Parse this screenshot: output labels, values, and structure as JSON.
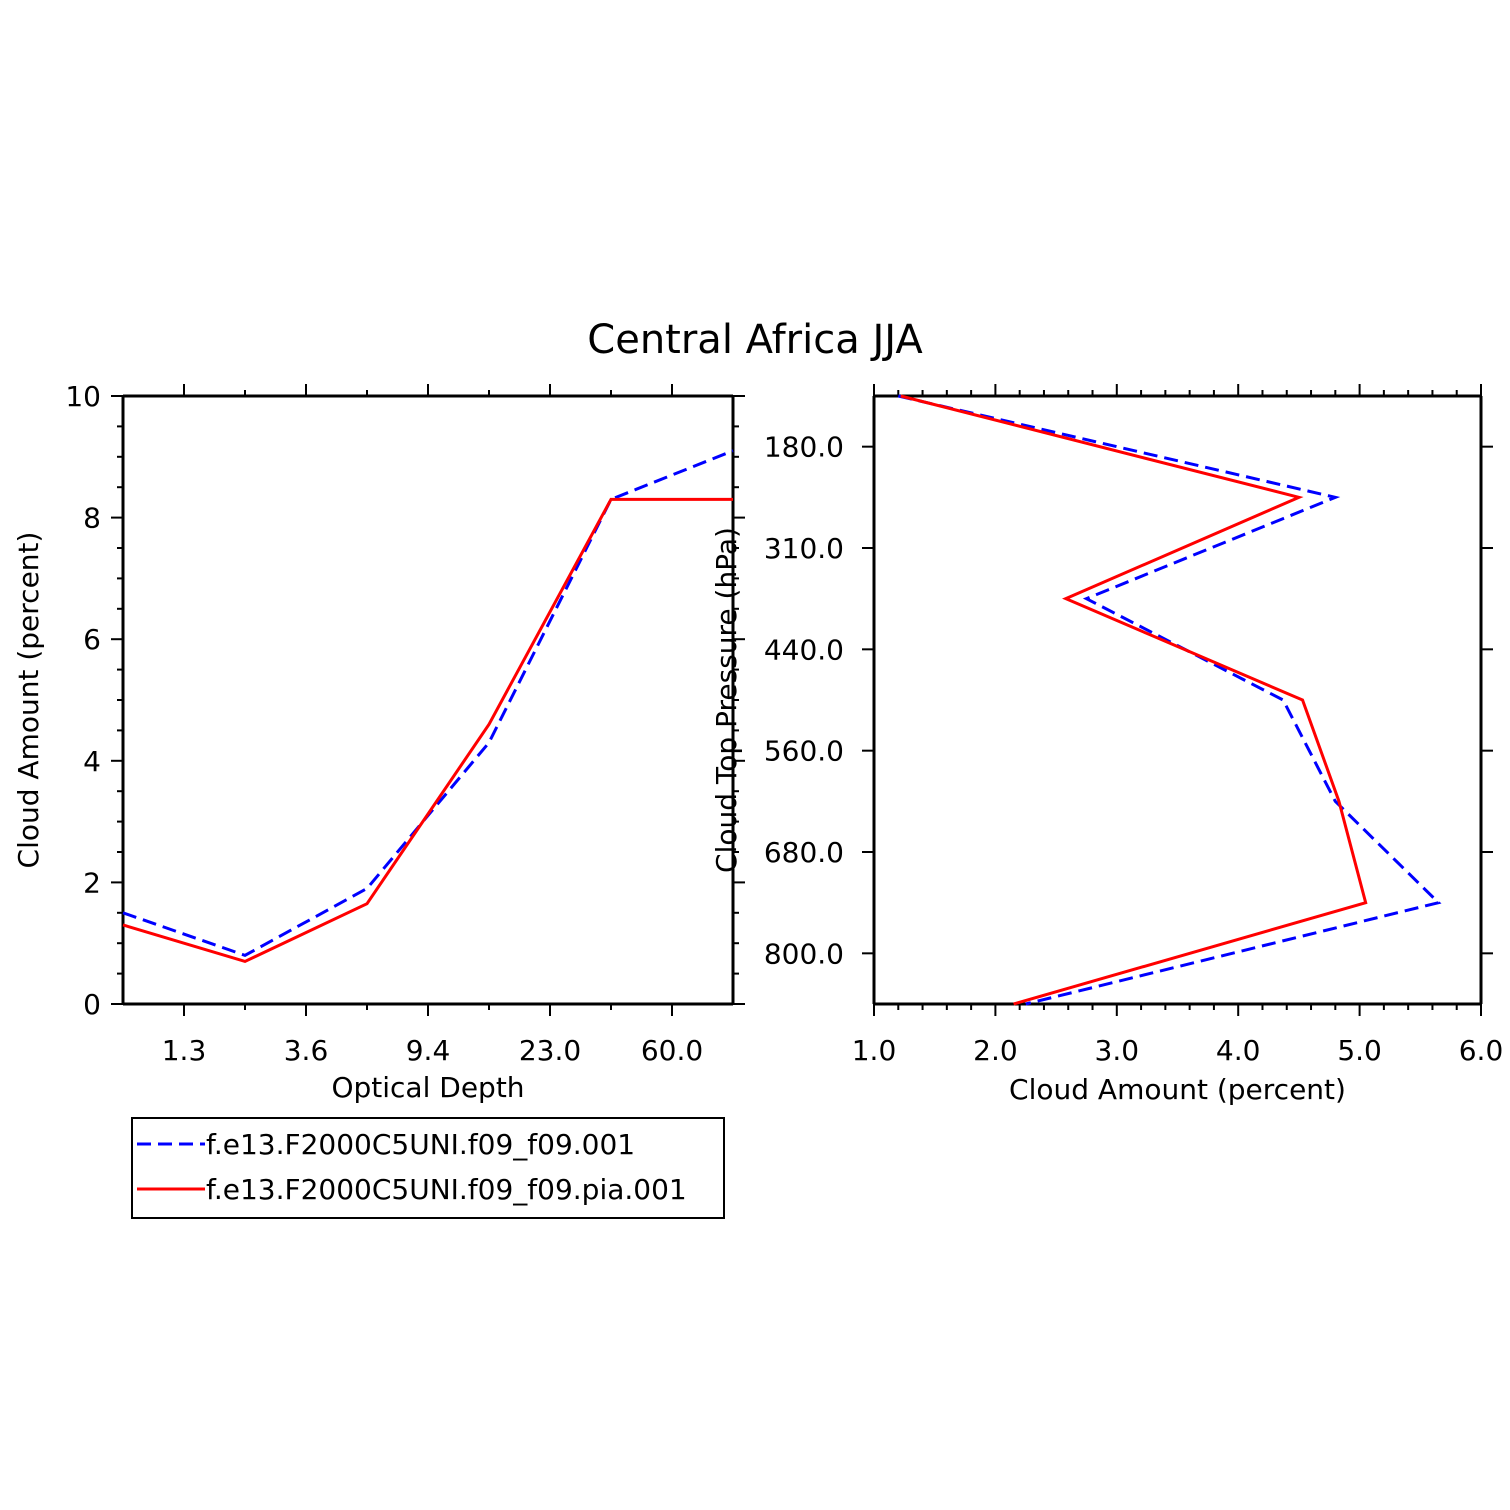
{
  "chart_data": [
    {
      "type": "line",
      "title": "Central Africa JJA",
      "xlabel": "Optical Depth",
      "ylabel": "Cloud Amount (percent)",
      "x_categories": [
        "",
        "1.3",
        "",
        "3.6",
        "",
        "9.4",
        "",
        "23.0",
        "",
        "60.0",
        ""
      ],
      "x_tick_labels": [
        "1.3",
        "3.6",
        "9.4",
        "23.0",
        "60.0"
      ],
      "y_ticks": [
        "0",
        "2",
        "4",
        "6",
        "8",
        "10"
      ],
      "ylim": [
        0,
        10
      ],
      "x": [
        0,
        2,
        4,
        6,
        8,
        10
      ],
      "series": [
        {
          "name": "f.e13.F2000C5UNI.f09_f09.001",
          "color": "#0000ff",
          "style": "dashed",
          "values": [
            1.5,
            0.8,
            1.9,
            4.3,
            8.3,
            9.1
          ]
        },
        {
          "name": "f.e13.F2000C5UNI.f09_f09.pia.001",
          "color": "#ff0000",
          "style": "solid",
          "values": [
            1.3,
            0.7,
            1.65,
            4.6,
            8.3,
            8.3
          ]
        }
      ]
    },
    {
      "type": "line",
      "xlabel": "Cloud Amount (percent)",
      "ylabel": "Cloud Top Pressure (hPa)",
      "xlim": [
        1.0,
        6.0
      ],
      "x_ticks": [
        "1.0",
        "2.0",
        "3.0",
        "4.0",
        "5.0",
        "6.0"
      ],
      "y_tick_labels": [
        "180.0",
        "310.0",
        "440.0",
        "560.0",
        "680.0",
        "800.0"
      ],
      "y": [
        0,
        1,
        2,
        3,
        4,
        5,
        6
      ],
      "series": [
        {
          "name": "f.e13.F2000C5UNI.f09_f09.001",
          "color": "#0000ff",
          "style": "dashed",
          "values": [
            1.2,
            4.8,
            2.75,
            4.37,
            4.8,
            5.65,
            2.25
          ]
        },
        {
          "name": "f.e13.F2000C5UNI.f09_f09.pia.001",
          "color": "#ff0000",
          "style": "solid",
          "values": [
            1.22,
            4.5,
            2.58,
            4.53,
            4.83,
            5.05,
            2.15
          ]
        }
      ]
    }
  ],
  "legend": {
    "items": [
      {
        "label": "f.e13.F2000C5UNI.f09_f09.001",
        "color": "#0000ff",
        "style": "dashed"
      },
      {
        "label": "f.e13.F2000C5UNI.f09_f09.pia.001",
        "color": "#ff0000",
        "style": "solid"
      }
    ]
  }
}
